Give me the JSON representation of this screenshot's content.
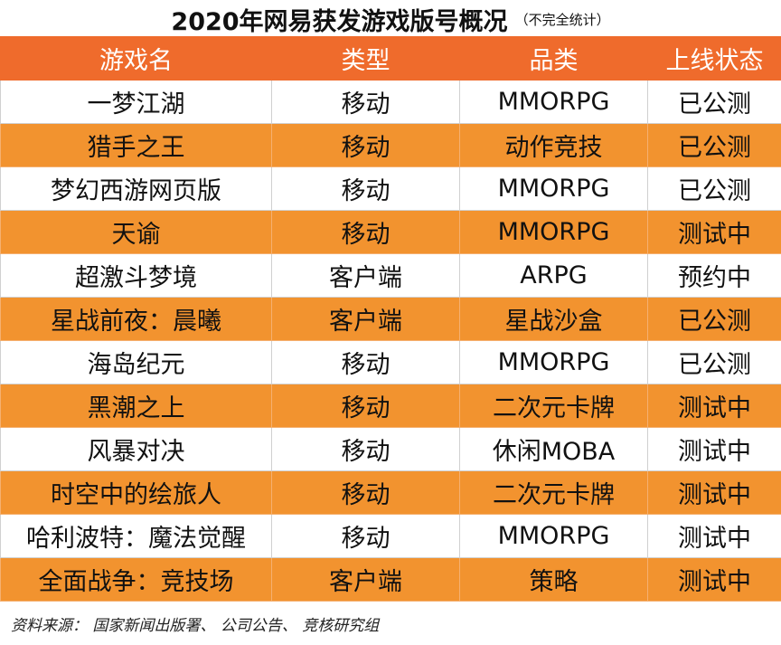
{
  "title": "2020年网易获发游戏版号概况",
  "subtitle": "（不完全统计）",
  "source": "资料来源： 国家新闻出版署、 公司公告、 竞核研究组",
  "colors": {
    "header_bg": "#ef6b2c",
    "stripe_bg": "#f2932f",
    "plain_bg": "#ffffff"
  },
  "chart_data": {
    "type": "table",
    "columns": [
      "游戏名",
      "类型",
      "品类",
      "上线状态"
    ],
    "rows": [
      [
        "一梦江湖",
        "移动",
        "MMORPG",
        "已公测"
      ],
      [
        "猎手之王",
        "移动",
        "动作竞技",
        "已公测"
      ],
      [
        "梦幻西游网页版",
        "移动",
        "MMORPG",
        "已公测"
      ],
      [
        "天谕",
        "移动",
        "MMORPG",
        "测试中"
      ],
      [
        "超激斗梦境",
        "客户端",
        "ARPG",
        "预约中"
      ],
      [
        "星战前夜：晨曦",
        "客户端",
        "星战沙盒",
        "已公测"
      ],
      [
        "海岛纪元",
        "移动",
        "MMORPG",
        "已公测"
      ],
      [
        "黑潮之上",
        "移动",
        "二次元卡牌",
        "测试中"
      ],
      [
        "风暴对决",
        "移动",
        "休闲MOBA",
        "测试中"
      ],
      [
        "时空中的绘旅人",
        "移动",
        "二次元卡牌",
        "测试中"
      ],
      [
        "哈利波特：魔法觉醒",
        "移动",
        "MMORPG",
        "测试中"
      ],
      [
        "全面战争：竞技场",
        "客户端",
        "策略",
        "测试中"
      ]
    ]
  }
}
